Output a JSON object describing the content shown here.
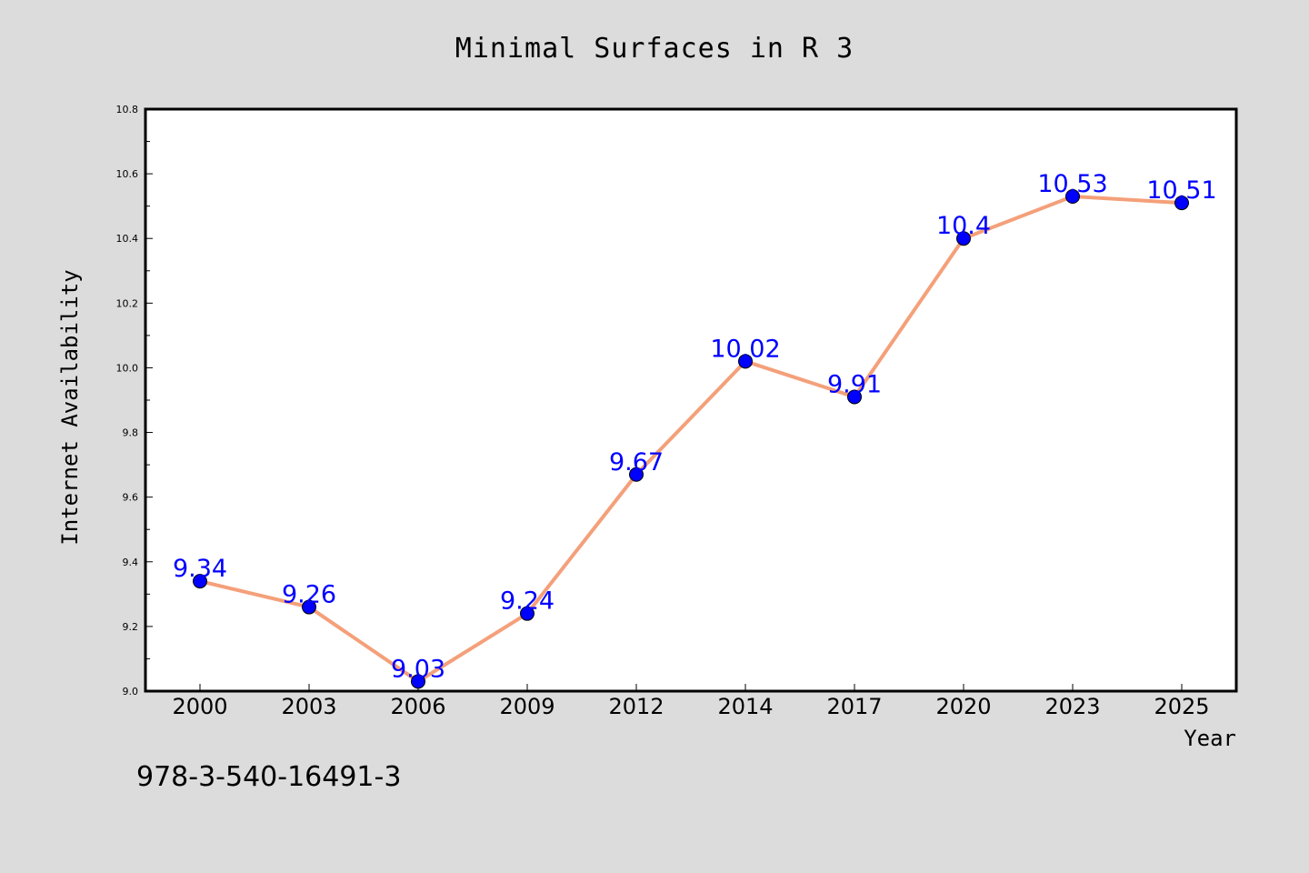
{
  "chart_data": {
    "type": "line",
    "title": "Minimal Surfaces in R 3",
    "xlabel": "Year",
    "ylabel": "Internet Availability",
    "categories": [
      "2000",
      "2003",
      "2006",
      "2009",
      "2012",
      "2014",
      "2017",
      "2020",
      "2023",
      "2025"
    ],
    "series": [
      {
        "values": [
          9.34,
          9.26,
          9.03,
          9.24,
          9.67,
          10.02,
          9.91,
          10.4,
          10.53,
          10.51
        ],
        "data_labels": [
          "9.34",
          "9.26",
          "9.03",
          "9.24",
          "9.67",
          "10.02",
          "9.91",
          "10.4",
          "10.53",
          "10.51"
        ],
        "line_color": "#f4a07a",
        "marker_color": "#0000ff",
        "label_color": "#0000ff"
      }
    ],
    "ylim": [
      9.0,
      10.8
    ],
    "yticks": [
      "9.0",
      "9.2",
      "9.4",
      "9.6",
      "9.8",
      "10.0",
      "10.2",
      "10.4",
      "10.6",
      "10.8"
    ],
    "ytick_values": [
      9.0,
      9.2,
      9.4,
      9.6,
      9.8,
      10.0,
      10.2,
      10.4,
      10.6,
      10.8
    ],
    "grid": false,
    "legend": "none"
  },
  "footer": {
    "text": "978-3-540-16491-3"
  },
  "colors": {
    "background": "#dcdcdc",
    "plot_background": "#ffffff",
    "line": "#f4a07a",
    "marker": "#0000ff"
  }
}
